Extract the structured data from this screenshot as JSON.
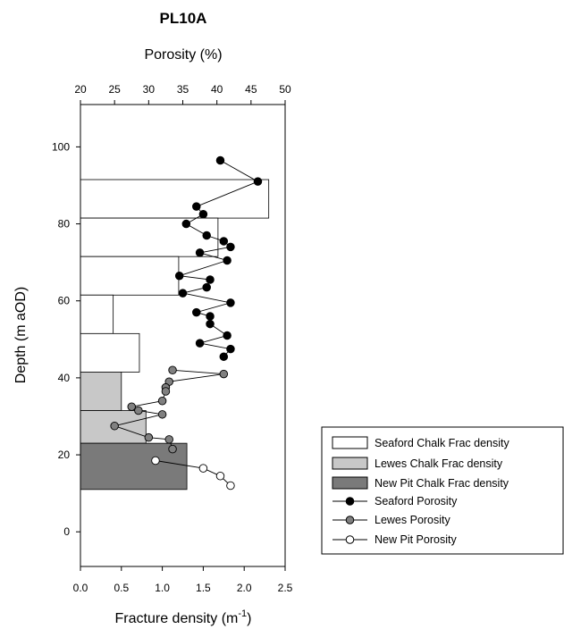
{
  "chart_data": {
    "type": "bar",
    "title": "PL10A",
    "top_axis": {
      "label": "Porosity (%)",
      "range": [
        20,
        50
      ],
      "ticks": [
        "20",
        "25",
        "30",
        "35",
        "40",
        "45",
        "50"
      ]
    },
    "bottom_axis": {
      "label": "Fracture density (m",
      "superscript": "-1",
      "label_close": ")",
      "range": [
        0,
        2.5
      ],
      "ticks": [
        "0.0",
        "0.5",
        "1.0",
        "1.5",
        "2.0",
        "2.5"
      ]
    },
    "left_axis": {
      "label": "Depth (m aOD)",
      "range": [
        -9,
        111
      ],
      "ticks": [
        "0",
        "20",
        "40",
        "60",
        "80",
        "100"
      ]
    },
    "frac_bars": [
      {
        "series": "Seaford Chalk Frac density",
        "depth_bottom": 81.5,
        "depth_top": 91.5,
        "value": 2.3
      },
      {
        "series": "Seaford Chalk Frac density",
        "depth_bottom": 71.5,
        "depth_top": 81.5,
        "value": 1.68
      },
      {
        "series": "Seaford Chalk Frac density",
        "depth_bottom": 61.5,
        "depth_top": 71.5,
        "value": 1.2
      },
      {
        "series": "Seaford Chalk Frac density",
        "depth_bottom": 51.5,
        "depth_top": 61.5,
        "value": 0.4
      },
      {
        "series": "Seaford Chalk Frac density",
        "depth_bottom": 41.5,
        "depth_top": 51.5,
        "value": 0.72
      },
      {
        "series": "Lewes Chalk Frac density",
        "depth_bottom": 31.5,
        "depth_top": 41.5,
        "value": 0.5
      },
      {
        "series": "Lewes Chalk Frac density",
        "depth_bottom": 23,
        "depth_top": 31.5,
        "value": 0.8
      },
      {
        "series": "New Pit Chalk Frac density",
        "depth_bottom": 11,
        "depth_top": 23,
        "value": 1.3
      }
    ],
    "series": [
      {
        "name": "Seaford Porosity",
        "points": [
          [
            40.5,
            96.5
          ],
          [
            46,
            91
          ],
          [
            37,
            84.5
          ],
          [
            38,
            82.5
          ],
          [
            35.5,
            80
          ],
          [
            38.5,
            77
          ],
          [
            41,
            75.5
          ],
          [
            42,
            74
          ],
          [
            37.5,
            72.5
          ],
          [
            41.5,
            70.5
          ],
          [
            34.5,
            66.5
          ],
          [
            39,
            65.5
          ],
          [
            38.5,
            63.5
          ],
          [
            35,
            62
          ],
          [
            42,
            59.5
          ],
          [
            37,
            57
          ],
          [
            39,
            56
          ],
          [
            39,
            54
          ],
          [
            41.5,
            51
          ],
          [
            37.5,
            49
          ],
          [
            42,
            47.5
          ],
          [
            41,
            45.5
          ]
        ]
      },
      {
        "name": "Lewes Porosity",
        "points": [
          [
            33.5,
            42
          ],
          [
            41,
            41
          ],
          [
            33,
            39
          ],
          [
            32.5,
            37.5
          ],
          [
            32.5,
            36.5
          ],
          [
            32,
            34
          ],
          [
            27.5,
            32.5
          ],
          [
            28.5,
            31.5
          ],
          [
            32,
            30.5
          ],
          [
            25,
            27.5
          ],
          [
            30,
            24.5
          ],
          [
            33,
            24
          ],
          [
            33.5,
            21.5
          ]
        ]
      },
      {
        "name": "New Pit Porosity",
        "points": [
          [
            31,
            18.5
          ],
          [
            38,
            16.5
          ],
          [
            40.5,
            14.5
          ],
          [
            42,
            12
          ]
        ]
      }
    ],
    "legend": {
      "placement": "lower-right",
      "entries": [
        "Seaford Chalk Frac density",
        "Lewes Chalk Frac density",
        "New Pit Chalk Frac density",
        "Seaford Porosity",
        "Lewes Porosity",
        "New Pit Porosity"
      ]
    },
    "colors": {
      "seaford_fill": "#ffffff",
      "lewes_fill": "#c8c8c8",
      "newpit_fill": "#7a7a7a",
      "seaford_marker": "#000000",
      "lewes_marker": "#808080",
      "newpit_marker": "#ffffff"
    }
  }
}
